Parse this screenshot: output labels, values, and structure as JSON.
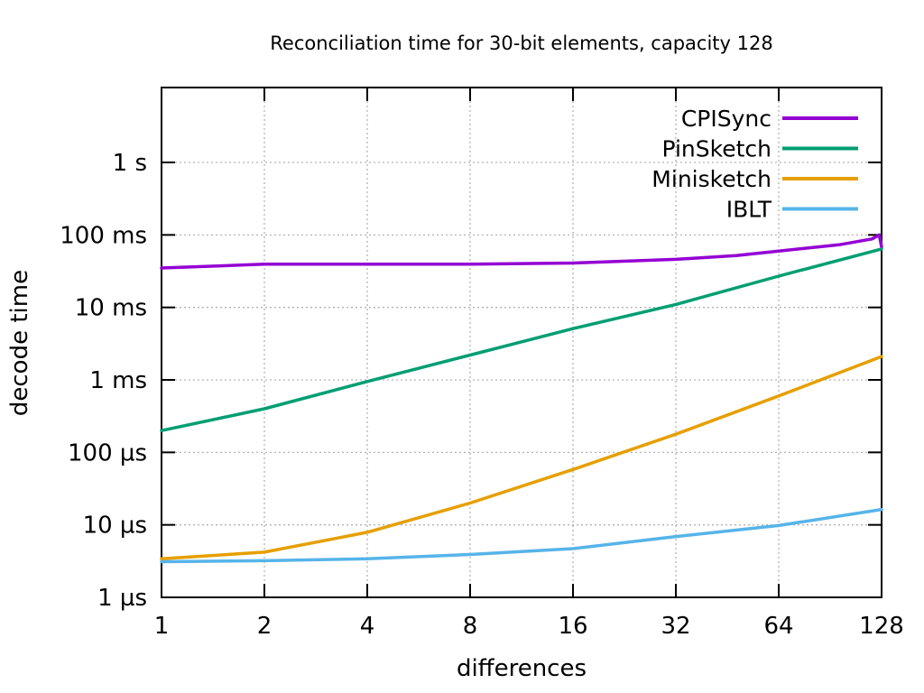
{
  "chart_data": {
    "type": "line",
    "title": "Reconciliation time for 30-bit elements, capacity 128",
    "xlabel": "differences",
    "ylabel": "decode time",
    "x_scale": "log2",
    "y_scale": "log10",
    "grid": true,
    "legend_position": "top-right",
    "x_range": [
      1,
      128
    ],
    "y_range_us": [
      1,
      10800000
    ],
    "x_ticks": [
      1,
      2,
      4,
      8,
      16,
      32,
      64,
      128
    ],
    "y_ticks": [
      {
        "label": "1 µs",
        "us": 1
      },
      {
        "label": "10 µs",
        "us": 10
      },
      {
        "label": "100 µs",
        "us": 100
      },
      {
        "label": "1 ms",
        "us": 1000
      },
      {
        "label": "10 ms",
        "us": 10000
      },
      {
        "label": "100 ms",
        "us": 100000
      },
      {
        "label": "1 s",
        "us": 1000000
      }
    ],
    "series": [
      {
        "name": "CPISync",
        "color": "#9400d3",
        "x": [
          1,
          2,
          4,
          8,
          16,
          32,
          48,
          64,
          96,
          120,
          126,
          128
        ],
        "values_us": [
          35000,
          39500,
          39500,
          39500,
          41000,
          46000,
          52000,
          60000,
          73000,
          88000,
          100000,
          68000
        ]
      },
      {
        "name": "PinSketch",
        "color": "#009e73",
        "x": [
          1,
          2,
          4,
          8,
          16,
          32,
          64,
          128
        ],
        "values_us": [
          200,
          400,
          950,
          2200,
          5100,
          11000,
          27000,
          64000
        ]
      },
      {
        "name": "Minisketch",
        "color": "#e69f00",
        "x": [
          1,
          2,
          4,
          8,
          16,
          32,
          64,
          128
        ],
        "values_us": [
          3.4,
          4.2,
          7.9,
          20,
          58,
          178,
          600,
          2100
        ]
      },
      {
        "name": "IBLT",
        "color": "#56b4e9",
        "x": [
          1,
          2,
          4,
          8,
          16,
          32,
          64,
          128
        ],
        "values_us": [
          3.1,
          3.2,
          3.4,
          3.9,
          4.7,
          6.9,
          9.8,
          16.3
        ]
      }
    ]
  },
  "colors": {
    "background": "#ffffff",
    "text": "#000000",
    "axis": "#000000",
    "grid": "#b3b3b3"
  }
}
